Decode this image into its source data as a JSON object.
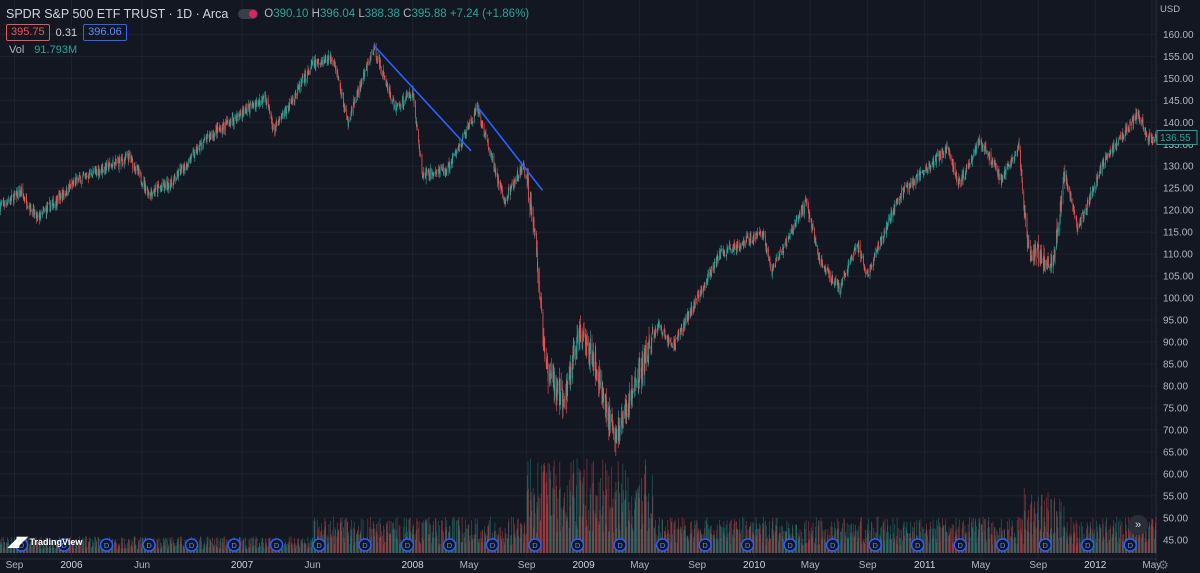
{
  "header": {
    "title": "SPDR S&P 500 ETF TRUST · 1D · Arca",
    "open_label": "O",
    "open": "390.10",
    "high_label": "H",
    "high": "396.04",
    "low_label": "L",
    "low": "388.38",
    "close_label": "C",
    "close": "395.88",
    "change": "+7.24 (+1.86%)",
    "bid": "395.75",
    "spread": "0.31",
    "ask": "396.06",
    "volume_label": "Vol",
    "volume": "91.793M",
    "currency": "USD",
    "logo_text": "TradingView"
  },
  "colors": {
    "background": "#131722",
    "up": "#26a69a",
    "down": "#ef5350",
    "trendline": "#2962ff",
    "grid": "#1e222d",
    "last_price": "#26a69a"
  },
  "chart_data": {
    "type": "candlestick",
    "title": "SPDR S&P 500 ETF TRUST",
    "interval": "1D",
    "ylim": [
      42,
      166
    ],
    "y_ticks": [
      45,
      50,
      55,
      60,
      65,
      70,
      75,
      80,
      85,
      90,
      95,
      100,
      105,
      110,
      115,
      120,
      125,
      130,
      135,
      140,
      145,
      150,
      155,
      160
    ],
    "x_range": [
      "2005-08-01",
      "2012-05-10"
    ],
    "x_ticks": [
      {
        "label": "Sep",
        "date": "2005-09-01"
      },
      {
        "label": "2006",
        "date": "2006-01-01"
      },
      {
        "label": "Jun",
        "date": "2006-06-01"
      },
      {
        "label": "2007",
        "date": "2007-01-01"
      },
      {
        "label": "Jun",
        "date": "2007-06-01"
      },
      {
        "label": "2008",
        "date": "2008-01-01"
      },
      {
        "label": "May",
        "date": "2008-05-01"
      },
      {
        "label": "Sep",
        "date": "2008-09-01"
      },
      {
        "label": "2009",
        "date": "2009-01-01"
      },
      {
        "label": "May",
        "date": "2009-05-01"
      },
      {
        "label": "Sep",
        "date": "2009-09-01"
      },
      {
        "label": "2010",
        "date": "2010-01-01"
      },
      {
        "label": "May",
        "date": "2010-05-01"
      },
      {
        "label": "Sep",
        "date": "2010-09-01"
      },
      {
        "label": "2011",
        "date": "2011-01-01"
      },
      {
        "label": "May",
        "date": "2011-05-01"
      },
      {
        "label": "Sep",
        "date": "2011-09-01"
      },
      {
        "label": "2012",
        "date": "2012-01-01"
      },
      {
        "label": "May",
        "date": "2012-05-01"
      }
    ],
    "price_path": [
      {
        "date": "2005-08-01",
        "close": 121
      },
      {
        "date": "2005-09-15",
        "close": 124
      },
      {
        "date": "2005-10-20",
        "close": 118
      },
      {
        "date": "2006-01-15",
        "close": 127
      },
      {
        "date": "2006-05-05",
        "close": 132
      },
      {
        "date": "2006-06-15",
        "close": 124
      },
      {
        "date": "2006-08-01",
        "close": 126
      },
      {
        "date": "2006-10-15",
        "close": 136
      },
      {
        "date": "2007-02-20",
        "close": 146
      },
      {
        "date": "2007-03-10",
        "close": 138
      },
      {
        "date": "2007-06-01",
        "close": 153
      },
      {
        "date": "2007-07-15",
        "close": 155
      },
      {
        "date": "2007-08-15",
        "close": 140
      },
      {
        "date": "2007-10-10",
        "close": 157
      },
      {
        "date": "2007-11-25",
        "close": 143
      },
      {
        "date": "2008-01-01",
        "close": 147
      },
      {
        "date": "2008-01-22",
        "close": 128
      },
      {
        "date": "2008-03-15",
        "close": 129
      },
      {
        "date": "2008-05-19",
        "close": 143
      },
      {
        "date": "2008-07-15",
        "close": 122
      },
      {
        "date": "2008-08-25",
        "close": 130
      },
      {
        "date": "2008-09-15",
        "close": 120
      },
      {
        "date": "2008-10-10",
        "close": 85
      },
      {
        "date": "2008-11-20",
        "close": 76
      },
      {
        "date": "2008-12-15",
        "close": 90
      },
      {
        "date": "2009-01-10",
        "close": 91
      },
      {
        "date": "2009-03-09",
        "close": 68
      },
      {
        "date": "2009-06-10",
        "close": 94
      },
      {
        "date": "2009-07-10",
        "close": 89
      },
      {
        "date": "2009-10-20",
        "close": 110
      },
      {
        "date": "2010-01-19",
        "close": 115
      },
      {
        "date": "2010-02-08",
        "close": 106
      },
      {
        "date": "2010-04-23",
        "close": 122
      },
      {
        "date": "2010-05-20",
        "close": 109
      },
      {
        "date": "2010-07-02",
        "close": 102
      },
      {
        "date": "2010-08-10",
        "close": 112
      },
      {
        "date": "2010-08-30",
        "close": 105
      },
      {
        "date": "2010-11-05",
        "close": 123
      },
      {
        "date": "2011-02-18",
        "close": 134
      },
      {
        "date": "2011-03-16",
        "close": 126
      },
      {
        "date": "2011-04-29",
        "close": 136
      },
      {
        "date": "2011-06-15",
        "close": 127
      },
      {
        "date": "2011-07-22",
        "close": 135
      },
      {
        "date": "2011-08-09",
        "close": 111
      },
      {
        "date": "2011-10-03",
        "close": 108
      },
      {
        "date": "2011-10-28",
        "close": 128
      },
      {
        "date": "2011-11-25",
        "close": 116
      },
      {
        "date": "2012-01-20",
        "close": 131
      },
      {
        "date": "2012-04-02",
        "close": 142
      },
      {
        "date": "2012-04-20",
        "close": 137
      },
      {
        "date": "2012-05-10",
        "close": 136.55
      }
    ],
    "last_price": 136.55,
    "trendlines": [
      {
        "from": {
          "date": "2007-10-10",
          "price": 157.5
        },
        "to": {
          "date": "2008-05-05",
          "price": 133.5
        }
      },
      {
        "from": {
          "date": "2008-05-19",
          "price": 143.5
        },
        "to": {
          "date": "2008-10-05",
          "price": 124.5
        }
      }
    ],
    "volume_band": "bottom",
    "dividend_marker_label": "D",
    "dividend_dates": [
      "2005-09-16",
      "2005-12-16",
      "2006-03-17",
      "2006-06-16",
      "2006-09-15",
      "2006-12-15",
      "2007-03-16",
      "2007-06-15",
      "2007-09-21",
      "2007-12-21",
      "2008-03-20",
      "2008-06-20",
      "2008-09-19",
      "2008-12-19",
      "2009-03-20",
      "2009-06-19",
      "2009-09-18",
      "2009-12-18",
      "2010-03-19",
      "2010-06-18",
      "2010-09-17",
      "2010-12-17",
      "2011-03-18",
      "2011-06-17",
      "2011-09-16",
      "2011-12-16",
      "2012-03-16"
    ]
  }
}
